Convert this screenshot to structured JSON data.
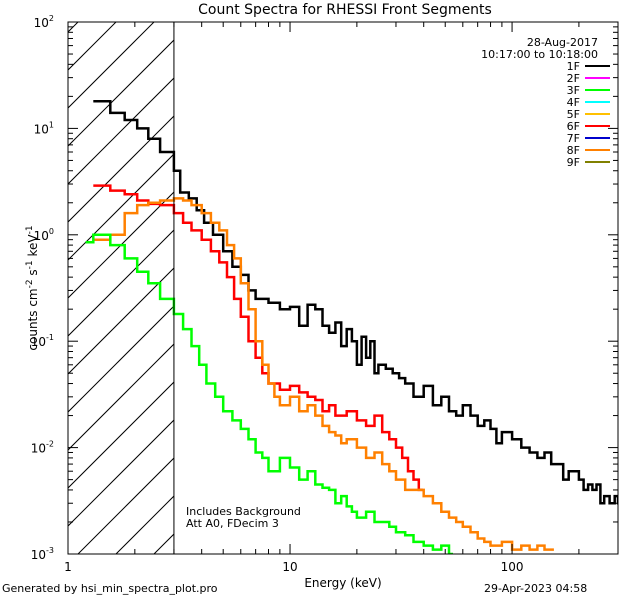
{
  "chart_data": {
    "type": "line",
    "title": "Count Spectra for RHESSI Front Segments",
    "xlabel": "Energy (keV)",
    "ylabel_parts": [
      "counts cm",
      "-2",
      " s",
      "-1",
      " keV",
      "-1"
    ],
    "xscale": "log",
    "yscale": "log",
    "xlim": [
      1,
      300
    ],
    "ylim": [
      0.001,
      100
    ],
    "x_ticks": [
      {
        "value": 1,
        "label": "1"
      },
      {
        "value": 10,
        "label": "10"
      },
      {
        "value": 100,
        "label": "100"
      }
    ],
    "y_ticks": [
      {
        "value": 0.001,
        "base": "10",
        "exp": "-3"
      },
      {
        "value": 0.01,
        "base": "10",
        "exp": "-2"
      },
      {
        "value": 0.1,
        "base": "10",
        "exp": "-1"
      },
      {
        "value": 1,
        "base": "10",
        "exp": "0"
      },
      {
        "value": 10,
        "base": "10",
        "exp": "1"
      },
      {
        "value": 100,
        "base": "10",
        "exp": "2"
      }
    ],
    "hatch_region_keV": [
      1,
      3
    ],
    "date": "28-Aug-2017",
    "time_range": "10:17:00 to 10:18:00",
    "annotations": [
      "Includes Background",
      "Att A0, FDecim 3"
    ],
    "legend_position": "top-right",
    "legend": [
      {
        "name": "1F",
        "color": "#000000"
      },
      {
        "name": "2F",
        "color": "#ff00ff"
      },
      {
        "name": "3F",
        "color": "#00ff00"
      },
      {
        "name": "4F",
        "color": "#00ffff"
      },
      {
        "name": "5F",
        "color": "#ffc000"
      },
      {
        "name": "6F",
        "color": "#ff0000"
      },
      {
        "name": "7F",
        "color": "#0000cc"
      },
      {
        "name": "8F",
        "color": "#ff8000"
      },
      {
        "name": "9F",
        "color": "#808000"
      }
    ],
    "series": [
      {
        "name": "1F",
        "color": "#000000",
        "points": [
          [
            1.3,
            18
          ],
          [
            1.55,
            14
          ],
          [
            1.8,
            12
          ],
          [
            2.05,
            10
          ],
          [
            2.3,
            8
          ],
          [
            2.6,
            6
          ],
          [
            3.0,
            4
          ],
          [
            3.2,
            2.5
          ],
          [
            3.5,
            2.2
          ],
          [
            3.8,
            1.7
          ],
          [
            4.1,
            1.3
          ],
          [
            4.5,
            1.0
          ],
          [
            5.0,
            0.7
          ],
          [
            5.5,
            0.5
          ],
          [
            6.0,
            0.42
          ],
          [
            6.5,
            0.3
          ],
          [
            7.0,
            0.25
          ],
          [
            8.0,
            0.23
          ],
          [
            9.0,
            0.2
          ],
          [
            10,
            0.21
          ],
          [
            11,
            0.14
          ],
          [
            12,
            0.22
          ],
          [
            13,
            0.2
          ],
          [
            14,
            0.14
          ],
          [
            15,
            0.12
          ],
          [
            16,
            0.15
          ],
          [
            17,
            0.09
          ],
          [
            18,
            0.13
          ],
          [
            19,
            0.1
          ],
          [
            20,
            0.06
          ],
          [
            21,
            0.11
          ],
          [
            22,
            0.07
          ],
          [
            23,
            0.1
          ],
          [
            24,
            0.05
          ],
          [
            25,
            0.06
          ],
          [
            27,
            0.055
          ],
          [
            29,
            0.05
          ],
          [
            31,
            0.045
          ],
          [
            33,
            0.04
          ],
          [
            36,
            0.03
          ],
          [
            40,
            0.038
          ],
          [
            44,
            0.025
          ],
          [
            48,
            0.03
          ],
          [
            52,
            0.022
          ],
          [
            56,
            0.02
          ],
          [
            60,
            0.025
          ],
          [
            65,
            0.02
          ],
          [
            70,
            0.016
          ],
          [
            75,
            0.018
          ],
          [
            80,
            0.015
          ],
          [
            85,
            0.011
          ],
          [
            90,
            0.014
          ],
          [
            100,
            0.012
          ],
          [
            110,
            0.01
          ],
          [
            120,
            0.009
          ],
          [
            130,
            0.008
          ],
          [
            140,
            0.009
          ],
          [
            150,
            0.007
          ],
          [
            160,
            0.007
          ],
          [
            170,
            0.005
          ],
          [
            180,
            0.006
          ],
          [
            190,
            0.006
          ],
          [
            200,
            0.005
          ],
          [
            210,
            0.004
          ],
          [
            220,
            0.0045
          ],
          [
            230,
            0.004
          ],
          [
            240,
            0.0045
          ],
          [
            250,
            0.003
          ],
          [
            260,
            0.0035
          ],
          [
            275,
            0.003
          ],
          [
            290,
            0.0035
          ],
          [
            300,
            0.003
          ]
        ]
      },
      {
        "name": "6F",
        "color": "#ff0000",
        "points": [
          [
            1.3,
            2.9
          ],
          [
            1.55,
            2.6
          ],
          [
            1.8,
            2.4
          ],
          [
            2.05,
            2.1
          ],
          [
            2.3,
            1.95
          ],
          [
            2.6,
            1.9
          ],
          [
            3.0,
            1.6
          ],
          [
            3.3,
            1.3
          ],
          [
            3.6,
            1.1
          ],
          [
            4.0,
            0.9
          ],
          [
            4.4,
            0.7
          ],
          [
            4.8,
            0.55
          ],
          [
            5.2,
            0.4
          ],
          [
            5.6,
            0.25
          ],
          [
            6.0,
            0.17
          ],
          [
            6.5,
            0.1
          ],
          [
            7.0,
            0.07
          ],
          [
            7.5,
            0.05
          ],
          [
            8.0,
            0.04
          ],
          [
            9.0,
            0.035
          ],
          [
            10,
            0.038
          ],
          [
            11,
            0.033
          ],
          [
            12,
            0.03
          ],
          [
            13,
            0.028
          ],
          [
            14,
            0.022
          ],
          [
            15,
            0.025
          ],
          [
            16,
            0.02
          ],
          [
            18,
            0.022
          ],
          [
            20,
            0.018
          ],
          [
            22,
            0.016
          ],
          [
            24,
            0.02
          ],
          [
            26,
            0.014
          ],
          [
            28,
            0.012
          ],
          [
            30,
            0.01
          ],
          [
            32,
            0.008
          ],
          [
            34,
            0.006
          ],
          [
            36,
            0.005
          ],
          [
            38,
            0.004
          ]
        ]
      },
      {
        "name": "8F",
        "color": "#ff8000",
        "points": [
          [
            1.3,
            0.9
          ],
          [
            1.55,
            1.0
          ],
          [
            1.8,
            1.6
          ],
          [
            2.05,
            1.9
          ],
          [
            2.3,
            2.0
          ],
          [
            2.6,
            2.1
          ],
          [
            3.0,
            2.2
          ],
          [
            3.3,
            2.1
          ],
          [
            3.6,
            1.9
          ],
          [
            4.0,
            1.6
          ],
          [
            4.4,
            1.3
          ],
          [
            4.8,
            1.1
          ],
          [
            5.2,
            0.8
          ],
          [
            5.6,
            0.6
          ],
          [
            6.0,
            0.35
          ],
          [
            6.5,
            0.2
          ],
          [
            7.0,
            0.1
          ],
          [
            7.5,
            0.06
          ],
          [
            8.0,
            0.04
          ],
          [
            8.5,
            0.03
          ],
          [
            9.0,
            0.025
          ],
          [
            10,
            0.03
          ],
          [
            11,
            0.022
          ],
          [
            12,
            0.025
          ],
          [
            13,
            0.02
          ],
          [
            14,
            0.016
          ],
          [
            15,
            0.014
          ],
          [
            16,
            0.013
          ],
          [
            17,
            0.011
          ],
          [
            18,
            0.012
          ],
          [
            20,
            0.01
          ],
          [
            22,
            0.008
          ],
          [
            24,
            0.009
          ],
          [
            26,
            0.007
          ],
          [
            28,
            0.006
          ],
          [
            30,
            0.005
          ],
          [
            33,
            0.004
          ],
          [
            36,
            0.004
          ],
          [
            40,
            0.0035
          ],
          [
            44,
            0.003
          ],
          [
            48,
            0.0025
          ],
          [
            52,
            0.0022
          ],
          [
            56,
            0.002
          ],
          [
            60,
            0.0018
          ],
          [
            65,
            0.0016
          ],
          [
            70,
            0.0014
          ],
          [
            75,
            0.0013
          ],
          [
            80,
            0.0012
          ],
          [
            90,
            0.0013
          ],
          [
            100,
            0.0011
          ],
          [
            110,
            0.0012
          ],
          [
            120,
            0.0011
          ],
          [
            130,
            0.0012
          ],
          [
            140,
            0.0011
          ],
          [
            148,
            0.0011
          ]
        ]
      },
      {
        "name": "3F",
        "color": "#00ff00",
        "points": [
          [
            1.2,
            0.85
          ],
          [
            1.3,
            1.0
          ],
          [
            1.55,
            0.8
          ],
          [
            1.8,
            0.6
          ],
          [
            2.05,
            0.45
          ],
          [
            2.3,
            0.35
          ],
          [
            2.6,
            0.25
          ],
          [
            3.0,
            0.18
          ],
          [
            3.3,
            0.13
          ],
          [
            3.6,
            0.09
          ],
          [
            3.9,
            0.06
          ],
          [
            4.2,
            0.04
          ],
          [
            4.6,
            0.03
          ],
          [
            5.0,
            0.022
          ],
          [
            5.5,
            0.018
          ],
          [
            6.0,
            0.015
          ],
          [
            6.5,
            0.012
          ],
          [
            7.0,
            0.009
          ],
          [
            7.5,
            0.008
          ],
          [
            8.0,
            0.006
          ],
          [
            9.0,
            0.008
          ],
          [
            10,
            0.0065
          ],
          [
            11,
            0.005
          ],
          [
            12,
            0.006
          ],
          [
            13,
            0.0045
          ],
          [
            14,
            0.0042
          ],
          [
            15,
            0.004
          ],
          [
            16,
            0.003
          ],
          [
            17,
            0.0035
          ],
          [
            18,
            0.0028
          ],
          [
            19,
            0.0025
          ],
          [
            20,
            0.0022
          ],
          [
            22,
            0.0025
          ],
          [
            24,
            0.002
          ],
          [
            26,
            0.002
          ],
          [
            28,
            0.0018
          ],
          [
            30,
            0.0016
          ],
          [
            33,
            0.0015
          ],
          [
            36,
            0.0013
          ],
          [
            40,
            0.0012
          ],
          [
            44,
            0.0011
          ],
          [
            48,
            0.0012
          ],
          [
            52,
            0.001
          ]
        ]
      }
    ]
  },
  "footer": {
    "left": "Generated by hsi_min_spectra_plot.pro",
    "right": "29-Apr-2023 04:58"
  }
}
